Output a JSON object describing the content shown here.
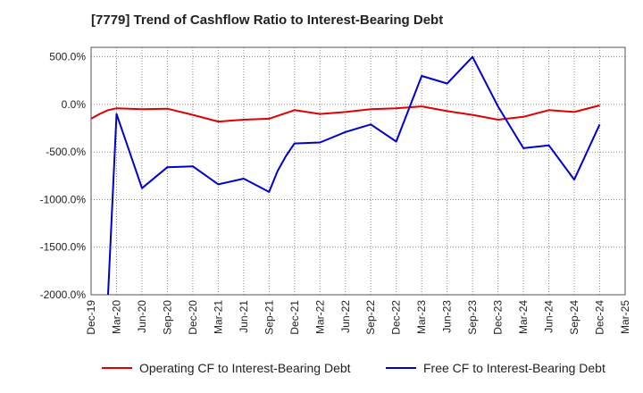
{
  "chart_data": {
    "type": "line",
    "title": "[7779]  Trend of Cashflow Ratio to Interest-Bearing Debt",
    "xlabel": "",
    "ylabel": "",
    "x_ticks": [
      "Dec-19",
      "Mar-20",
      "Jun-20",
      "Sep-20",
      "Dec-20",
      "Mar-21",
      "Jun-21",
      "Sep-21",
      "Dec-21",
      "Mar-22",
      "Jun-22",
      "Sep-22",
      "Dec-22",
      "Mar-23",
      "Jun-23",
      "Sep-23",
      "Dec-23",
      "Mar-24",
      "Jun-24",
      "Sep-24",
      "Dec-24",
      "Mar-25"
    ],
    "y_ticks": [
      "500.0%",
      "0.0%",
      "-500.0%",
      "-1000.0%",
      "-1500.0%",
      "-2000.0%"
    ],
    "ylim": [
      -2000,
      600
    ],
    "grid": true,
    "legend_position": "bottom",
    "series": [
      {
        "name": "Operating CF to Interest-Bearing Debt",
        "color": "#e00000",
        "points": [
          [
            "Dec-19",
            -150
          ],
          [
            "Jan-20",
            -100
          ],
          [
            "Feb-20",
            -60
          ],
          [
            "Mar-20",
            -40
          ],
          [
            "Jun-20",
            -50
          ],
          [
            "Sep-20",
            -45
          ],
          [
            "Dec-20",
            -110
          ],
          [
            "Mar-21",
            -180
          ],
          [
            "Jun-21",
            -160
          ],
          [
            "Sep-21",
            -150
          ],
          [
            "Dec-21",
            -60
          ],
          [
            "Mar-22",
            -100
          ],
          [
            "Jun-22",
            -80
          ],
          [
            "Sep-22",
            -50
          ],
          [
            "Dec-22",
            -40
          ],
          [
            "Mar-23",
            -20
          ],
          [
            "Jun-23",
            -70
          ],
          [
            "Sep-23",
            -110
          ],
          [
            "Dec-23",
            -160
          ],
          [
            "Mar-24",
            -130
          ],
          [
            "Jun-24",
            -60
          ],
          [
            "Sep-24",
            -80
          ],
          [
            "Dec-24",
            -10
          ]
        ]
      },
      {
        "name": "Free CF to Interest-Bearing Debt",
        "color": "#0000cc",
        "points": [
          [
            "Feb-20",
            -2000
          ],
          [
            "Mar-20",
            -100
          ],
          [
            "Jun-20",
            -880
          ],
          [
            "Sep-20",
            -660
          ],
          [
            "Dec-20",
            -650
          ],
          [
            "Mar-21",
            -840
          ],
          [
            "Jun-21",
            -780
          ],
          [
            "Sep-21",
            -920
          ],
          [
            "Oct-21",
            -700
          ],
          [
            "Nov-21",
            -540
          ],
          [
            "Dec-21",
            -410
          ],
          [
            "Mar-22",
            -400
          ],
          [
            "Jun-22",
            -290
          ],
          [
            "Sep-22",
            -210
          ],
          [
            "Dec-22",
            -390
          ],
          [
            "Mar-23",
            300
          ],
          [
            "Jun-23",
            220
          ],
          [
            "Sep-23",
            500
          ],
          [
            "Dec-23",
            -20
          ],
          [
            "Mar-24",
            -460
          ],
          [
            "Jun-24",
            -430
          ],
          [
            "Sep-24",
            -790
          ],
          [
            "Dec-24",
            -210
          ]
        ]
      }
    ]
  }
}
